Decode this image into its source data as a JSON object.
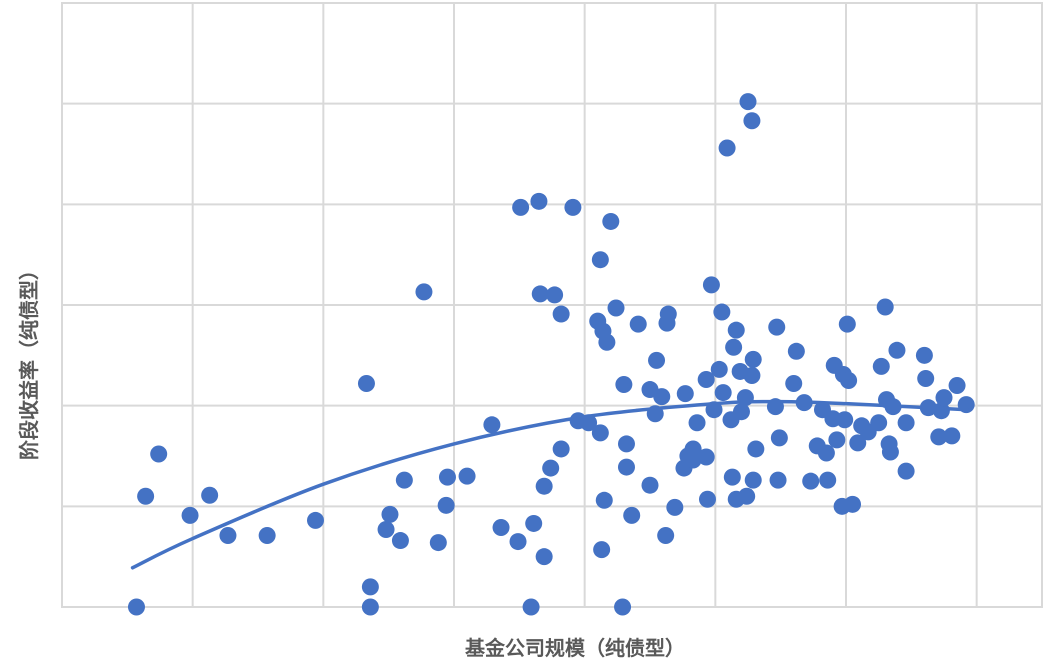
{
  "chart_data": {
    "type": "scatter",
    "x_label": "基金公司规模（纯债型）",
    "y_label": "阶段收益率（纯债型）",
    "color": "#4472c4",
    "grid": true,
    "xlim": [
      0,
      75
    ],
    "xticks": [
      0,
      10,
      20,
      30,
      40,
      50,
      60,
      70
    ],
    "ylim": [
      0,
      60
    ],
    "yticks": [
      0,
      10,
      20,
      30,
      40,
      50,
      60
    ],
    "x": [
      5.7,
      6.4,
      7.4,
      9.8,
      11.3,
      12.7,
      15.7,
      19.4,
      23.3,
      23.6,
      23.6,
      24.8,
      25.1,
      25.9,
      26.2,
      27.7,
      28.8,
      29.4,
      29.5,
      31.0,
      32.9,
      33.6,
      34.9,
      35.1,
      35.9,
      36.1,
      36.5,
      36.6,
      36.9,
      36.9,
      37.4,
      37.7,
      38.2,
      38.2,
      39.1,
      39.5,
      40.3,
      41.0,
      41.2,
      41.2,
      41.3,
      41.4,
      41.5,
      41.7,
      42.0,
      42.4,
      42.9,
      43.0,
      43.2,
      43.2,
      43.6,
      44.1,
      45.0,
      45.0,
      45.4,
      45.5,
      45.9,
      46.2,
      46.3,
      46.4,
      46.9,
      47.6,
      47.7,
      47.9,
      48.3,
      48.3,
      48.6,
      49.3,
      49.3,
      49.4,
      49.7,
      49.9,
      50.3,
      50.5,
      50.6,
      50.9,
      51.2,
      51.3,
      51.4,
      51.6,
      51.6,
      51.9,
      52.0,
      52.3,
      52.4,
      52.5,
      52.8,
      52.8,
      52.9,
      52.9,
      53.1,
      54.6,
      54.7,
      54.8,
      54.9,
      56.0,
      56.2,
      56.8,
      57.3,
      57.8,
      58.2,
      58.5,
      58.6,
      59.0,
      59.1,
      59.3,
      59.7,
      59.8,
      59.9,
      60.1,
      60.2,
      60.5,
      60.9,
      61.2,
      61.7,
      62.5,
      62.7,
      63.0,
      63.1,
      63.3,
      63.4,
      63.6,
      63.9,
      64.6,
      64.6,
      66.0,
      66.1,
      66.3,
      67.1,
      67.3,
      67.5,
      68.1,
      68.5,
      69.2
    ],
    "values": [
      0,
      11.0,
      15.2,
      9.1,
      11.1,
      7.1,
      7.1,
      8.6,
      22.2,
      2.0,
      0,
      7.7,
      9.2,
      6.6,
      12.6,
      31.3,
      6.4,
      10.1,
      12.9,
      13.0,
      18.1,
      7.9,
      6.5,
      39.7,
      0,
      8.3,
      40.3,
      31.1,
      12.0,
      5.0,
      13.8,
      31.0,
      29.1,
      15.7,
      39.7,
      18.5,
      18.3,
      28.4,
      34.5,
      17.3,
      5.7,
      27.4,
      10.6,
      26.3,
      38.3,
      29.7,
      0,
      22.1,
      16.2,
      13.9,
      9.1,
      28.1,
      12.1,
      21.6,
      19.2,
      24.5,
      20.9,
      7.1,
      28.2,
      29.1,
      9.9,
      13.8,
      21.2,
      15.0,
      15.7,
      14.6,
      18.3,
      14.9,
      22.6,
      10.7,
      32.0,
      19.6,
      23.6,
      29.3,
      21.3,
      45.6,
      18.6,
      12.9,
      25.8,
      27.5,
      10.7,
      23.4,
      19.4,
      20.8,
      11.0,
      50.2,
      48.3,
      23.0,
      24.6,
      12.6,
      15.7,
      19.9,
      27.8,
      12.6,
      16.8,
      22.2,
      25.4,
      20.3,
      12.5,
      16.0,
      19.6,
      15.3,
      12.6,
      18.7,
      24.0,
      16.6,
      10.0,
      23.1,
      18.6,
      28.1,
      22.5,
      10.2,
      16.3,
      18.0,
      17.4,
      18.3,
      23.9,
      29.8,
      20.6,
      16.2,
      15.4,
      19.9,
      25.5,
      13.5,
      18.3,
      25.0,
      22.7,
      19.8,
      16.9,
      19.5,
      20.8,
      17.0,
      22.0,
      20.1
    ],
    "trendline": {
      "x": [
        5.4,
        10,
        20,
        30,
        40,
        50,
        55,
        60,
        69.3
      ],
      "y": [
        3.9,
        6.8,
        12.2,
        16.2,
        18.9,
        20.2,
        20.4,
        20.2,
        19.6
      ]
    }
  }
}
